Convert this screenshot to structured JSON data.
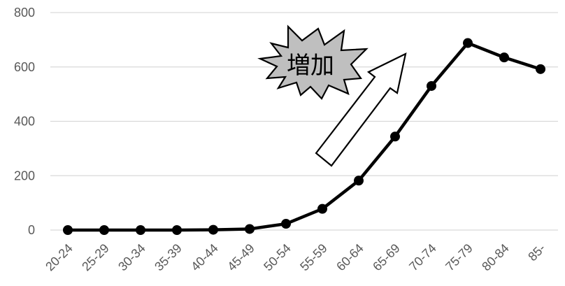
{
  "chart_data": {
    "type": "line",
    "categories": [
      "20-24",
      "25-29",
      "30-34",
      "35-39",
      "40-44",
      "45-49",
      "50-54",
      "55-59",
      "60-64",
      "65-69",
      "70-74",
      "75-79",
      "80-84",
      "85-"
    ],
    "series": [
      {
        "values": [
          0,
          0,
          0,
          0,
          1,
          4,
          23,
          78,
          182,
          344,
          530,
          688,
          635,
          592
        ]
      }
    ],
    "ylim": [
      0,
      800
    ],
    "yticks": [
      0,
      200,
      400,
      600,
      800
    ],
    "grid": true,
    "legend": "none",
    "annotations": [
      {
        "kind": "burst-callout",
        "text": "増加"
      },
      {
        "kind": "hollow-arrow",
        "direction": "up-right"
      }
    ],
    "colors": {
      "line": "#000000",
      "grid": "#d9d9d9",
      "ticks": "#595959",
      "burst": "#bfbfbf"
    }
  }
}
